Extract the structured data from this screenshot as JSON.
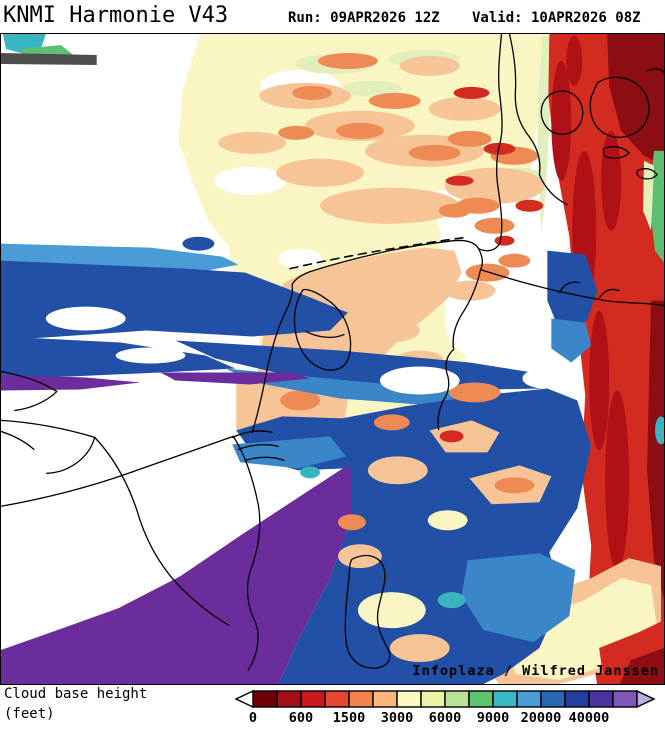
{
  "header": {
    "title": "KNMI Harmonie V43",
    "run_label": "Run: 09APR2026 12Z",
    "valid_label": "Valid: 10APR2026 08Z"
  },
  "map": {
    "attribution": "Infoplaza / Wilfred Janssen"
  },
  "legend": {
    "title_line1": "Cloud base height",
    "title_line2": "(feet)",
    "tick_labels": [
      "0",
      "600",
      "1500",
      "3000",
      "6000",
      "9000",
      "20000",
      "40000"
    ],
    "cell_colors": [
      "#6e0008",
      "#a40e15",
      "#cb181d",
      "#e8472f",
      "#f5814e",
      "#fbb67e",
      "#fef9c0",
      "#ebf3a4",
      "#b9e294",
      "#5dc46d",
      "#3ab8c4",
      "#4a9cd6",
      "#2b66b5",
      "#223f9e",
      "#4c339f",
      "#7e57b8"
    ],
    "arrow_left_color": "#ffffff",
    "arrow_right_color": "#b9addc",
    "outline_color": "#000000"
  }
}
